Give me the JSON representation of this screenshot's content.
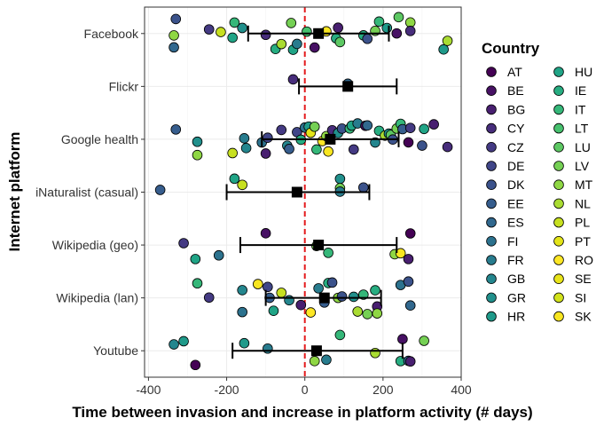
{
  "chart_data": {
    "type": "scatter",
    "xlabel": "Time between invasion and increase in platform activity (# days)",
    "ylabel": "Internet platform",
    "xlim": [
      -410,
      400
    ],
    "x_ticks": [
      -400,
      -200,
      0,
      200,
      400
    ],
    "x_tick_labels": [
      "-400",
      "-200",
      "0",
      "200",
      "400"
    ],
    "reference_line_x": 0,
    "reference_line_color": "#e41a1c",
    "grid": true,
    "legend_title": "Country",
    "legend_position": "right",
    "categories": [
      "Facebook",
      "Flickr",
      "Google health",
      "iNaturalist (casual)",
      "Wikipedia (geo)",
      "Wikipedia (lan)",
      "Youtube"
    ],
    "countries": [
      {
        "code": "AT",
        "color": "#440154"
      },
      {
        "code": "BE",
        "color": "#471164"
      },
      {
        "code": "BG",
        "color": "#481F70"
      },
      {
        "code": "CY",
        "color": "#472D7B"
      },
      {
        "code": "CZ",
        "color": "#443A83"
      },
      {
        "code": "DE",
        "color": "#404688"
      },
      {
        "code": "DK",
        "color": "#3B528B"
      },
      {
        "code": "EE",
        "color": "#365D8D"
      },
      {
        "code": "ES",
        "color": "#31688E"
      },
      {
        "code": "FI",
        "color": "#2C728E"
      },
      {
        "code": "FR",
        "color": "#287C8E"
      },
      {
        "code": "GB",
        "color": "#24868E"
      },
      {
        "code": "GR",
        "color": "#21908C"
      },
      {
        "code": "HR",
        "color": "#1F9A8A"
      },
      {
        "code": "HU",
        "color": "#20A486"
      },
      {
        "code": "IE",
        "color": "#27AD81"
      },
      {
        "code": "IT",
        "color": "#35B779"
      },
      {
        "code": "LT",
        "color": "#47C16E"
      },
      {
        "code": "LU",
        "color": "#5DC863"
      },
      {
        "code": "LV",
        "color": "#75D054"
      },
      {
        "code": "MT",
        "color": "#8FD744"
      },
      {
        "code": "NL",
        "color": "#AADC32"
      },
      {
        "code": "PL",
        "color": "#C7E020"
      },
      {
        "code": "PT",
        "color": "#E3E418"
      },
      {
        "code": "RO",
        "color": "#FDE725"
      },
      {
        "code": "SE",
        "color": "#E8E419"
      },
      {
        "code": "SI",
        "color": "#D2E21B"
      },
      {
        "code": "SK",
        "color": "#F8E621"
      }
    ],
    "summary": [
      {
        "platform": "Facebook",
        "mean": 35,
        "low": -145,
        "high": 215
      },
      {
        "platform": "Flickr",
        "mean": 110,
        "low": -15,
        "high": 235
      },
      {
        "platform": "Google health",
        "mean": 65,
        "low": -110,
        "high": 240
      },
      {
        "platform": "iNaturalist (casual)",
        "mean": -20,
        "low": -200,
        "high": 165
      },
      {
        "platform": "Wikipedia (geo)",
        "mean": 35,
        "low": -165,
        "high": 235
      },
      {
        "platform": "Wikipedia (lan)",
        "mean": 50,
        "low": -100,
        "high": 195
      },
      {
        "platform": "Youtube",
        "mean": 30,
        "low": -185,
        "high": 250
      }
    ],
    "points": [
      {
        "platform": "Facebook",
        "x": -335,
        "country": "ES"
      },
      {
        "platform": "Facebook",
        "x": -330,
        "country": "DK"
      },
      {
        "platform": "Facebook",
        "x": -335,
        "country": "MT"
      },
      {
        "platform": "Facebook",
        "x": -245,
        "country": "CZ"
      },
      {
        "platform": "Facebook",
        "x": -215,
        "country": "PL"
      },
      {
        "platform": "Facebook",
        "x": -185,
        "country": "HU"
      },
      {
        "platform": "Facebook",
        "x": -180,
        "country": "IT"
      },
      {
        "platform": "Facebook",
        "x": -160,
        "country": "GR"
      },
      {
        "platform": "Facebook",
        "x": -100,
        "country": "CY"
      },
      {
        "platform": "Facebook",
        "x": -75,
        "country": "IE"
      },
      {
        "platform": "Facebook",
        "x": -60,
        "country": "NL"
      },
      {
        "platform": "Facebook",
        "x": -35,
        "country": "LV"
      },
      {
        "platform": "Facebook",
        "x": -30,
        "country": "HU"
      },
      {
        "platform": "Facebook",
        "x": -20,
        "country": "FR"
      },
      {
        "platform": "Facebook",
        "x": 5,
        "country": "LT"
      },
      {
        "platform": "Facebook",
        "x": 25,
        "country": "BE"
      },
      {
        "platform": "Facebook",
        "x": 55,
        "country": "SK"
      },
      {
        "platform": "Facebook",
        "x": 80,
        "country": "IE"
      },
      {
        "platform": "Facebook",
        "x": 85,
        "country": "BG"
      },
      {
        "platform": "Facebook",
        "x": 90,
        "country": "LU"
      },
      {
        "platform": "Facebook",
        "x": 150,
        "country": "IE"
      },
      {
        "platform": "Facebook",
        "x": 160,
        "country": "DK"
      },
      {
        "platform": "Facebook",
        "x": 180,
        "country": "LV"
      },
      {
        "platform": "Facebook",
        "x": 190,
        "country": "IT"
      },
      {
        "platform": "Facebook",
        "x": 210,
        "country": "HR"
      },
      {
        "platform": "Facebook",
        "x": 235,
        "country": "BE"
      },
      {
        "platform": "Facebook",
        "x": 240,
        "country": "LU"
      },
      {
        "platform": "Facebook",
        "x": 270,
        "country": "MT"
      },
      {
        "platform": "Facebook",
        "x": 270,
        "country": "CY"
      },
      {
        "platform": "Facebook",
        "x": 355,
        "country": "HR"
      },
      {
        "platform": "Facebook",
        "x": 365,
        "country": "NL"
      },
      {
        "platform": "Flickr",
        "x": -30,
        "country": "CY"
      },
      {
        "platform": "Flickr",
        "x": 110,
        "country": "ES"
      },
      {
        "platform": "Google health",
        "x": -330,
        "country": "EE"
      },
      {
        "platform": "Google health",
        "x": -275,
        "country": "GR"
      },
      {
        "platform": "Google health",
        "x": -275,
        "country": "MT"
      },
      {
        "platform": "Google health",
        "x": -185,
        "country": "PL"
      },
      {
        "platform": "Google health",
        "x": -155,
        "country": "FR"
      },
      {
        "platform": "Google health",
        "x": -150,
        "country": "GB"
      },
      {
        "platform": "Google health",
        "x": -110,
        "country": "FI"
      },
      {
        "platform": "Google health",
        "x": -100,
        "country": "BG"
      },
      {
        "platform": "Google health",
        "x": -95,
        "country": "DE"
      },
      {
        "platform": "Google health",
        "x": -60,
        "country": "CZ"
      },
      {
        "platform": "Google health",
        "x": -45,
        "country": "GB"
      },
      {
        "platform": "Google health",
        "x": -40,
        "country": "EE"
      },
      {
        "platform": "Google health",
        "x": -20,
        "country": "DE"
      },
      {
        "platform": "Google health",
        "x": -10,
        "country": "IE"
      },
      {
        "platform": "Google health",
        "x": 0,
        "country": "FI"
      },
      {
        "platform": "Google health",
        "x": 10,
        "country": "HR"
      },
      {
        "platform": "Google health",
        "x": 15,
        "country": "PT"
      },
      {
        "platform": "Google health",
        "x": 25,
        "country": "LV"
      },
      {
        "platform": "Google health",
        "x": 30,
        "country": "IT"
      },
      {
        "platform": "Google health",
        "x": 45,
        "country": "RO"
      },
      {
        "platform": "Google health",
        "x": 55,
        "country": "MT"
      },
      {
        "platform": "Google health",
        "x": 60,
        "country": "SK"
      },
      {
        "platform": "Google health",
        "x": 65,
        "country": "PL"
      },
      {
        "platform": "Google health",
        "x": 70,
        "country": "CY"
      },
      {
        "platform": "Google health",
        "x": 85,
        "country": "GR"
      },
      {
        "platform": "Google health",
        "x": 95,
        "country": "DK"
      },
      {
        "platform": "Google health",
        "x": 115,
        "country": "IT"
      },
      {
        "platform": "Google health",
        "x": 120,
        "country": "HU"
      },
      {
        "platform": "Google health",
        "x": 125,
        "country": "CZ"
      },
      {
        "platform": "Google health",
        "x": 135,
        "country": "FR"
      },
      {
        "platform": "Google health",
        "x": 155,
        "country": "BE"
      },
      {
        "platform": "Google health",
        "x": 160,
        "country": "ES"
      },
      {
        "platform": "Google health",
        "x": 180,
        "country": "GB"
      },
      {
        "platform": "Google health",
        "x": 190,
        "country": "IE"
      },
      {
        "platform": "Google health",
        "x": 205,
        "country": "NL"
      },
      {
        "platform": "Google health",
        "x": 215,
        "country": "GR"
      },
      {
        "platform": "Google health",
        "x": 220,
        "country": "LU"
      },
      {
        "platform": "Google health",
        "x": 225,
        "country": "DK"
      },
      {
        "platform": "Google health",
        "x": 235,
        "country": "LV"
      },
      {
        "platform": "Google health",
        "x": 245,
        "country": "IT"
      },
      {
        "platform": "Google health",
        "x": 250,
        "country": "EE"
      },
      {
        "platform": "Google health",
        "x": 265,
        "country": "AT"
      },
      {
        "platform": "Google health",
        "x": 270,
        "country": "CZ"
      },
      {
        "platform": "Google health",
        "x": 300,
        "country": "DK"
      },
      {
        "platform": "Google health",
        "x": 305,
        "country": "HU"
      },
      {
        "platform": "Google health",
        "x": 330,
        "country": "BG"
      },
      {
        "platform": "Google health",
        "x": 365,
        "country": "CY"
      },
      {
        "platform": "iNaturalist (casual)",
        "x": -370,
        "country": "EE"
      },
      {
        "platform": "iNaturalist (casual)",
        "x": -180,
        "country": "HU"
      },
      {
        "platform": "iNaturalist (casual)",
        "x": -160,
        "country": "PL"
      },
      {
        "platform": "iNaturalist (casual)",
        "x": 90,
        "country": "GR"
      },
      {
        "platform": "iNaturalist (casual)",
        "x": 90,
        "country": "LV"
      },
      {
        "platform": "iNaturalist (casual)",
        "x": 90,
        "country": "FR"
      },
      {
        "platform": "iNaturalist (casual)",
        "x": 150,
        "country": "DK"
      },
      {
        "platform": "Wikipedia (geo)",
        "x": -310,
        "country": "CZ"
      },
      {
        "platform": "Wikipedia (geo)",
        "x": -280,
        "country": "HU"
      },
      {
        "platform": "Wikipedia (geo)",
        "x": -220,
        "country": "FI"
      },
      {
        "platform": "Wikipedia (geo)",
        "x": -100,
        "country": "BE"
      },
      {
        "platform": "Wikipedia (geo)",
        "x": 30,
        "country": "LV"
      },
      {
        "platform": "Wikipedia (geo)",
        "x": 60,
        "country": "IT"
      },
      {
        "platform": "Wikipedia (geo)",
        "x": 230,
        "country": "MT"
      },
      {
        "platform": "Wikipedia (geo)",
        "x": 245,
        "country": "SK"
      },
      {
        "platform": "Wikipedia (geo)",
        "x": 265,
        "country": "BG"
      },
      {
        "platform": "Wikipedia (geo)",
        "x": 270,
        "country": "AT"
      },
      {
        "platform": "Wikipedia (lan)",
        "x": -275,
        "country": "IT"
      },
      {
        "platform": "Wikipedia (lan)",
        "x": -245,
        "country": "CZ"
      },
      {
        "platform": "Wikipedia (lan)",
        "x": -160,
        "country": "GB"
      },
      {
        "platform": "Wikipedia (lan)",
        "x": -160,
        "country": "FI"
      },
      {
        "platform": "Wikipedia (lan)",
        "x": -120,
        "country": "SK"
      },
      {
        "platform": "Wikipedia (lan)",
        "x": -95,
        "country": "DE"
      },
      {
        "platform": "Wikipedia (lan)",
        "x": -90,
        "country": "EE"
      },
      {
        "platform": "Wikipedia (lan)",
        "x": -80,
        "country": "HU"
      },
      {
        "platform": "Wikipedia (lan)",
        "x": -60,
        "country": "PL"
      },
      {
        "platform": "Wikipedia (lan)",
        "x": -40,
        "country": "GB"
      },
      {
        "platform": "Wikipedia (lan)",
        "x": -10,
        "country": "BG"
      },
      {
        "platform": "Wikipedia (lan)",
        "x": 15,
        "country": "RO"
      },
      {
        "platform": "Wikipedia (lan)",
        "x": 35,
        "country": "FR"
      },
      {
        "platform": "Wikipedia (lan)",
        "x": 50,
        "country": "EE"
      },
      {
        "platform": "Wikipedia (lan)",
        "x": 60,
        "country": "IE"
      },
      {
        "platform": "Wikipedia (lan)",
        "x": 70,
        "country": "DK"
      },
      {
        "platform": "Wikipedia (lan)",
        "x": 85,
        "country": "MT"
      },
      {
        "platform": "Wikipedia (lan)",
        "x": 95,
        "country": "DK"
      },
      {
        "platform": "Wikipedia (lan)",
        "x": 125,
        "country": "GR"
      },
      {
        "platform": "Wikipedia (lan)",
        "x": 135,
        "country": "NL"
      },
      {
        "platform": "Wikipedia (lan)",
        "x": 150,
        "country": "IT"
      },
      {
        "platform": "Wikipedia (lan)",
        "x": 160,
        "country": "LV"
      },
      {
        "platform": "Wikipedia (lan)",
        "x": 180,
        "country": "IE"
      },
      {
        "platform": "Wikipedia (lan)",
        "x": 185,
        "country": "BG"
      },
      {
        "platform": "Wikipedia (lan)",
        "x": 185,
        "country": "MT"
      },
      {
        "platform": "Wikipedia (lan)",
        "x": 245,
        "country": "FI"
      },
      {
        "platform": "Wikipedia (lan)",
        "x": 265,
        "country": "DK"
      },
      {
        "platform": "Wikipedia (lan)",
        "x": 270,
        "country": "ES"
      },
      {
        "platform": "Youtube",
        "x": -335,
        "country": "GB"
      },
      {
        "platform": "Youtube",
        "x": -310,
        "country": "HR"
      },
      {
        "platform": "Youtube",
        "x": -280,
        "country": "AT"
      },
      {
        "platform": "Youtube",
        "x": -155,
        "country": "HR"
      },
      {
        "platform": "Youtube",
        "x": -95,
        "country": "FR"
      },
      {
        "platform": "Youtube",
        "x": 25,
        "country": "MT"
      },
      {
        "platform": "Youtube",
        "x": 55,
        "country": "FR"
      },
      {
        "platform": "Youtube",
        "x": 90,
        "country": "IT"
      },
      {
        "platform": "Youtube",
        "x": 180,
        "country": "NL"
      },
      {
        "platform": "Youtube",
        "x": 245,
        "country": "IE"
      },
      {
        "platform": "Youtube",
        "x": 250,
        "country": "BE"
      },
      {
        "platform": "Youtube",
        "x": 265,
        "country": "ES"
      },
      {
        "platform": "Youtube",
        "x": 270,
        "country": "BG"
      },
      {
        "platform": "Youtube",
        "x": 305,
        "country": "LV"
      }
    ]
  }
}
